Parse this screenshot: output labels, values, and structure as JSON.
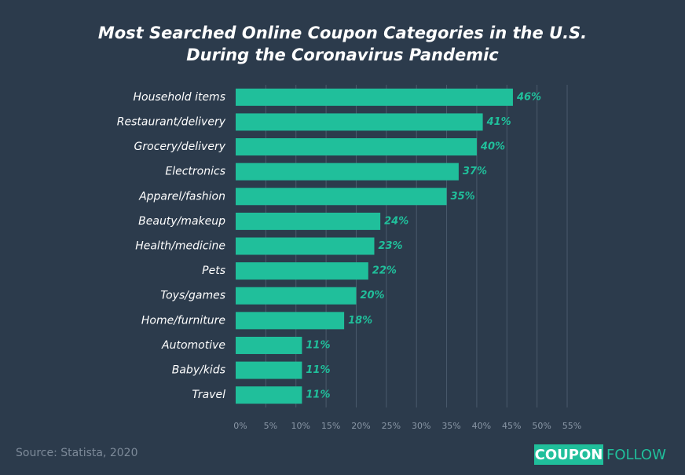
{
  "chart_data": {
    "type": "bar",
    "orientation": "horizontal",
    "title": [
      "Most Searched Online Coupon Categories in the U.S.",
      "During the Coronavirus Pandemic"
    ],
    "categories": [
      "Household items",
      "Restaurant/delivery",
      "Grocery/delivery",
      "Electronics",
      "Apparel/fashion",
      "Beauty/makeup",
      "Health/medicine",
      "Pets",
      "Toys/games",
      "Home/furniture",
      "Automotive",
      "Baby/kids",
      "Travel"
    ],
    "values": [
      46,
      41,
      40,
      37,
      35,
      24,
      23,
      22,
      20,
      18,
      11,
      11,
      11
    ],
    "value_labels": [
      "46%",
      "41%",
      "40%",
      "37%",
      "35%",
      "24%",
      "23%",
      "22%",
      "20%",
      "18%",
      "11%",
      "11%",
      "11%"
    ],
    "color": "#20bf9b",
    "xlim": [
      0,
      55
    ],
    "xticks": [
      {
        "value": 0,
        "label": "0%"
      },
      {
        "value": 5,
        "label": "5%"
      },
      {
        "value": 10,
        "label": "10%"
      },
      {
        "value": 15,
        "label": "15%"
      },
      {
        "value": 20,
        "label": "20%"
      },
      {
        "value": 25,
        "label": "25%"
      },
      {
        "value": 30,
        "label": "30%"
      },
      {
        "value": 35,
        "label": "35%"
      },
      {
        "value": 40,
        "label": "40%"
      },
      {
        "value": 45,
        "label": "45%"
      },
      {
        "value": 50,
        "label": "50%"
      },
      {
        "value": 55,
        "label": "55%"
      }
    ],
    "grid": true,
    "source": "Source: Statista, 2020",
    "logo": [
      "COUPON",
      "FOLLOW"
    ]
  }
}
